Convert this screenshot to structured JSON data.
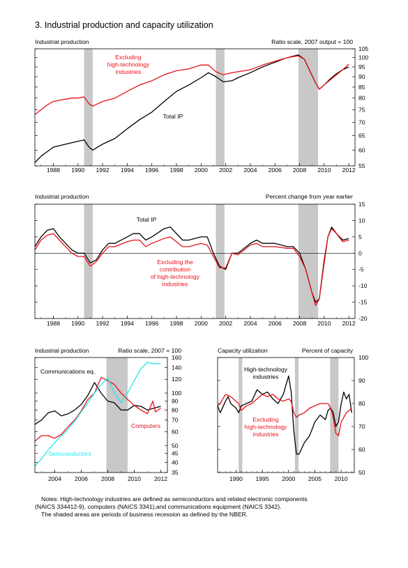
{
  "page_title": "3. Industrial production and capacity utilization",
  "notes": [
    "Notes:  High-technology industries are defined as semiconductors and related electronic components",
    "(NAICS 334412-9), computers (NAICS 3341),and communications equipment (NAICS 3342).",
    "The shaded areas are periods of business recession as defined by the NBER."
  ],
  "colors": {
    "black": "#000000",
    "red": "#e8101a",
    "cyan": "#22e8ec",
    "recession": "#c8c8c8"
  },
  "chart_data": [
    {
      "id": "ip-level",
      "type": "line",
      "title": "Industrial production",
      "units_label": "Ratio scale, 2007 output = 100",
      "y_scale": "log",
      "xlim": [
        1986.5,
        2012.5
      ],
      "ylim": [
        55,
        105
      ],
      "x_ticks": [
        1988,
        1990,
        1992,
        1994,
        1996,
        1998,
        2000,
        2002,
        2004,
        2006,
        2008,
        2010,
        2012
      ],
      "y_ticks": [
        55,
        60,
        65,
        70,
        75,
        80,
        85,
        90,
        95,
        100,
        105
      ],
      "recessions": [
        [
          1990.5,
          1991.2
        ],
        [
          2001.2,
          2001.9
        ],
        [
          2007.9,
          2009.5
        ]
      ],
      "series": [
        {
          "name": "Total IP",
          "color": "#000000",
          "x": [
            1986.5,
            1987,
            1987.5,
            1988,
            1988.5,
            1989,
            1989.5,
            1990,
            1990.5,
            1990.9,
            1991.2,
            1991.6,
            1992,
            1993,
            1994,
            1995,
            1996,
            1997,
            1998,
            1999,
            2000,
            2000.6,
            2001.2,
            2001.8,
            2002.5,
            2003,
            2004,
            2005,
            2006,
            2007,
            2007.9,
            2008.4,
            2008.9,
            2009.3,
            2009.6,
            2010,
            2010.5,
            2011,
            2011.5,
            2012
          ],
          "y": [
            56,
            58,
            59.5,
            61,
            61.5,
            62,
            62.5,
            63,
            63.5,
            61,
            60,
            61,
            62,
            64,
            67.5,
            71,
            74,
            78.5,
            83,
            86,
            89.5,
            92,
            90,
            87.5,
            88,
            89.5,
            92,
            95,
            97.5,
            100,
            101.5,
            99,
            92,
            87,
            84,
            86,
            89,
            91.5,
            93.5,
            95
          ]
        },
        {
          "name": "Excluding high-technology industries",
          "color": "#e8101a",
          "x": [
            1986.5,
            1987,
            1987.5,
            1988,
            1988.5,
            1989,
            1989.5,
            1990,
            1990.5,
            1990.9,
            1991.2,
            1991.6,
            1992,
            1993,
            1994,
            1995,
            1996,
            1997,
            1998,
            1999,
            2000,
            2000.6,
            2001.2,
            2001.8,
            2002.5,
            2003,
            2004,
            2005,
            2006,
            2007,
            2007.9,
            2008.4,
            2008.9,
            2009.3,
            2009.6,
            2010,
            2010.5,
            2011,
            2011.5,
            2012
          ],
          "y": [
            73,
            75,
            77,
            78.5,
            79,
            79.5,
            80,
            80,
            80.5,
            77.5,
            76.5,
            77.5,
            78.5,
            80,
            83,
            86,
            88,
            91,
            93,
            94,
            96,
            96,
            92.5,
            91,
            92,
            92.5,
            93.5,
            96,
            98,
            100,
            101,
            99,
            92,
            87,
            84,
            86,
            88.5,
            91,
            93.5,
            96.5
          ]
        }
      ],
      "annotations": [
        "Excluding high-technology industries",
        "Total IP"
      ]
    },
    {
      "id": "ip-change",
      "type": "line",
      "title": "Industrial production",
      "units_label": "Percent change from year earlier",
      "xlim": [
        1986.5,
        2012.5
      ],
      "ylim": [
        -20,
        15
      ],
      "x_ticks": [
        1988,
        1990,
        1992,
        1994,
        1996,
        1998,
        2000,
        2002,
        2004,
        2006,
        2008,
        2010,
        2012
      ],
      "y_ticks": [
        -20,
        -15,
        -10,
        -5,
        0,
        5,
        10,
        15
      ],
      "zero_line": true,
      "recessions": [
        [
          1990.5,
          1991.2
        ],
        [
          2001.2,
          2001.9
        ],
        [
          2007.9,
          2009.5
        ]
      ],
      "series": [
        {
          "name": "Total IP",
          "color": "#000000",
          "x": [
            1986.5,
            1987,
            1987.5,
            1988,
            1988.5,
            1989,
            1989.5,
            1990,
            1990.5,
            1991,
            1991.5,
            1992,
            1992.5,
            1993,
            1994,
            1994.5,
            1995,
            1995.5,
            1996,
            1997,
            1997.5,
            1998,
            1998.5,
            1999,
            2000,
            2000.5,
            2001,
            2001.5,
            2002,
            2002.5,
            2003,
            2004,
            2004.5,
            2005,
            2006,
            2007,
            2007.5,
            2008,
            2008.5,
            2009,
            2009.3,
            2009.6,
            2010,
            2010.3,
            2010.6,
            2011,
            2011.5,
            2012
          ],
          "y": [
            2,
            5,
            7,
            7.5,
            5,
            3,
            1,
            0,
            0,
            -3,
            -2,
            1,
            3,
            3,
            5,
            6,
            6,
            4,
            5,
            7.5,
            8,
            6,
            4,
            4,
            5,
            5,
            0,
            -4,
            -5,
            0,
            0,
            3,
            4,
            3,
            3,
            2,
            2,
            0,
            -5,
            -12,
            -15,
            -14,
            -2,
            5,
            8,
            6,
            4,
            4.5
          ]
        },
        {
          "name": "Excluding the contribution of high-technology industries",
          "color": "#e8101a",
          "x": [
            1986.5,
            1987,
            1987.5,
            1988,
            1988.5,
            1989,
            1989.5,
            1990,
            1990.5,
            1991,
            1991.5,
            1992,
            1992.5,
            1993,
            1994,
            1994.5,
            1995,
            1995.5,
            1996,
            1997,
            1997.5,
            1998,
            1998.5,
            1999,
            2000,
            2000.5,
            2001,
            2001.5,
            2002,
            2002.5,
            2003,
            2004,
            2004.5,
            2005,
            2006,
            2007,
            2007.5,
            2008,
            2008.5,
            2009,
            2009.3,
            2009.6,
            2010,
            2010.3,
            2010.6,
            2011,
            2011.5,
            2012
          ],
          "y": [
            1,
            4,
            5.5,
            6,
            4,
            2,
            0,
            -1,
            -1,
            -4,
            -2.5,
            0,
            2,
            2,
            3.5,
            4,
            4,
            2,
            3,
            4.5,
            5,
            3.5,
            2,
            2,
            3,
            2.5,
            -1,
            -4.5,
            -4.5,
            0,
            -0.5,
            2.5,
            3,
            2,
            2,
            1.5,
            1.5,
            -1,
            -5,
            -12,
            -16,
            -14,
            -3,
            5,
            7.5,
            6,
            3.5,
            4
          ]
        }
      ],
      "annotations": [
        "Total IP",
        "Excluding the contribution of high-technology industries"
      ]
    },
    {
      "id": "hightech-ip",
      "type": "line",
      "title": "Industrial production",
      "units_label": "Ratio scale, 2007 = 100",
      "y_scale": "log",
      "xlim": [
        2002.5,
        2012.5
      ],
      "ylim": [
        35,
        160
      ],
      "x_ticks": [
        2004,
        2006,
        2008,
        2010,
        2012
      ],
      "y_ticks": [
        35,
        40,
        45,
        50,
        60,
        70,
        80,
        90,
        100,
        120,
        140,
        160
      ],
      "recessions": [
        [
          2007.9,
          2009.5
        ]
      ],
      "series": [
        {
          "name": "Communications eq.",
          "color": "#000000",
          "x": [
            2002.5,
            2003,
            2003.5,
            2004,
            2004.5,
            2005,
            2005.5,
            2006,
            2006.5,
            2007,
            2007.5,
            2008,
            2008.5,
            2009,
            2009.5,
            2010,
            2010.5,
            2011,
            2011.5,
            2012
          ],
          "y": [
            66,
            70,
            77,
            79,
            74,
            76,
            80,
            86,
            97,
            115,
            100,
            90,
            88,
            80,
            80,
            85,
            84,
            80,
            82,
            84
          ]
        },
        {
          "name": "Computers",
          "color": "#e8101a",
          "x": [
            2002.5,
            2003,
            2003.5,
            2004,
            2004.5,
            2005,
            2005.5,
            2006,
            2006.5,
            2007,
            2007.5,
            2008,
            2008.5,
            2009,
            2009.5,
            2010,
            2010.5,
            2011,
            2011.4,
            2011.6,
            2012
          ],
          "y": [
            53,
            57,
            57,
            55,
            58,
            64,
            70,
            79,
            92,
            100,
            123,
            118,
            112,
            100,
            92,
            85,
            80,
            76,
            90,
            78,
            82
          ]
        },
        {
          "name": "Semiconductors",
          "color": "#22e8ec",
          "x": [
            2002.5,
            2003,
            2003.5,
            2004,
            2004.5,
            2005,
            2005.5,
            2006,
            2006.5,
            2007,
            2007.5,
            2008,
            2008.5,
            2009,
            2009.5,
            2010,
            2010.5,
            2011,
            2011.5,
            2012
          ],
          "y": [
            38,
            42,
            47,
            52,
            57,
            62,
            69,
            78,
            88,
            100,
            112,
            122,
            100,
            88,
            100,
            118,
            138,
            150,
            147,
            148
          ]
        }
      ],
      "annotations": [
        "Communications eq.",
        "Computers",
        "Semiconductors"
      ]
    },
    {
      "id": "capacity-utilization",
      "type": "line",
      "title": "Capacity utilization",
      "units_label": "Percent of capacity",
      "xlim": [
        1986.5,
        2012.5
      ],
      "ylim": [
        50,
        100
      ],
      "x_ticks": [
        1990,
        1995,
        2000,
        2005,
        2010
      ],
      "y_ticks": [
        50,
        60,
        70,
        80,
        90,
        100
      ],
      "recessions": [
        [
          1990.5,
          1991.2
        ],
        [
          2001.2,
          2001.9
        ],
        [
          2007.9,
          2009.5
        ]
      ],
      "series": [
        {
          "name": "High-technology industries",
          "color": "#000000",
          "x": [
            1986.5,
            1987,
            1988,
            1988.5,
            1989,
            1990,
            1990.5,
            1991,
            1992,
            1993,
            1994,
            1995,
            1996,
            1997,
            1998,
            1999,
            1999.5,
            2000,
            2000.5,
            2001,
            2001.5,
            2002,
            2003,
            2004,
            2005,
            2006,
            2007,
            2007.5,
            2008,
            2008.5,
            2009,
            2009.5,
            2010,
            2010.5,
            2011,
            2011.5,
            2012
          ],
          "y": [
            79,
            76,
            81,
            83,
            80,
            78,
            76,
            79,
            80,
            81,
            86,
            84,
            85,
            82,
            80,
            84,
            88,
            92,
            85,
            68,
            58,
            58,
            63,
            66,
            72,
            75,
            73,
            77,
            78,
            76,
            70,
            72,
            80,
            85,
            82,
            84,
            76
          ]
        },
        {
          "name": "Excluding high-technology industries",
          "color": "#e8101a",
          "x": [
            1986.5,
            1987,
            1988,
            1989,
            1990,
            1990.5,
            1991,
            1992,
            1993,
            1994,
            1995,
            1996,
            1997,
            1998,
            1999,
            2000,
            2000.5,
            2001,
            2001.5,
            2002,
            2003,
            2004,
            2005,
            2006,
            2007,
            2007.5,
            2008,
            2008.5,
            2009,
            2009.5,
            2010,
            2010.5,
            2011,
            2011.5,
            2012
          ],
          "y": [
            79,
            80,
            84,
            83,
            81,
            80,
            77,
            79,
            80,
            82,
            84,
            83,
            84,
            82,
            81,
            82,
            81,
            76,
            74,
            75,
            76,
            78,
            79,
            80,
            80,
            80,
            78,
            74,
            67,
            66,
            72,
            74,
            76,
            77,
            78
          ]
        }
      ],
      "annotations": [
        "High-technology industries",
        "Excluding high-technology industries"
      ]
    }
  ]
}
